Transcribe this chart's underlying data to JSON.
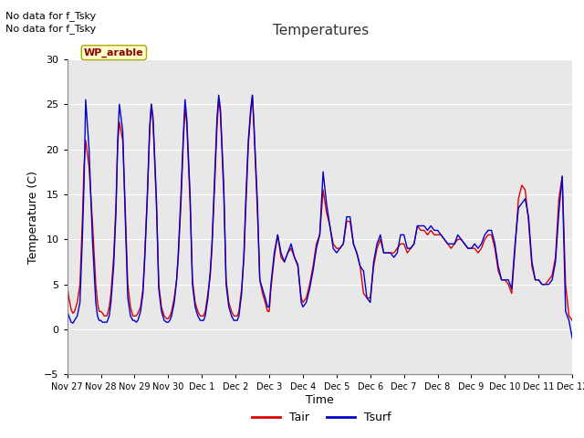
{
  "title": "Temperatures",
  "xlabel": "Time",
  "ylabel": "Temperature (C)",
  "ylim": [
    -5,
    30
  ],
  "xlim": [
    0,
    15
  ],
  "annotation_line1": "No data for f_Tsky",
  "annotation_line2": "No data for f_Tsky",
  "site_label": "WP_arable",
  "xtick_labels": [
    "Nov 27",
    "Nov 28",
    "Nov 29",
    "Nov 30",
    "Dec 1",
    "Dec 2",
    "Dec 3",
    "Dec 4",
    "Dec 5",
    "Dec 6",
    "Dec 7",
    "Dec 8",
    "Dec 9",
    "Dec 10",
    "Dec 11",
    "Dec 12"
  ],
  "yticks": [
    -5,
    0,
    5,
    10,
    15,
    20,
    25,
    30
  ],
  "tair_color": "#DD0000",
  "tsurf_color": "#0000CC",
  "bg_color": "#E8E8E8",
  "grid_color": "#FFFFFF",
  "fig_color": "#FFFFFF",
  "linewidth": 1.0,
  "legend_tair": "Tair",
  "legend_tsurf": "Tsurf",
  "tair_x": [
    0.0,
    0.05,
    0.12,
    0.17,
    0.22,
    0.3,
    0.38,
    0.45,
    0.5,
    0.55,
    0.65,
    0.75,
    0.85,
    0.9,
    0.95,
    1.0,
    1.05,
    1.1,
    1.18,
    1.25,
    1.3,
    1.38,
    1.45,
    1.5,
    1.55,
    1.65,
    1.72,
    1.8,
    1.88,
    1.95,
    2.0,
    2.05,
    2.1,
    2.18,
    2.25,
    2.3,
    2.38,
    2.45,
    2.5,
    2.55,
    2.65,
    2.72,
    2.8,
    2.88,
    2.95,
    3.0,
    3.05,
    3.1,
    3.18,
    3.25,
    3.3,
    3.38,
    3.45,
    3.5,
    3.55,
    3.65,
    3.72,
    3.8,
    3.88,
    3.95,
    4.0,
    4.05,
    4.1,
    4.18,
    4.25,
    4.3,
    4.38,
    4.45,
    4.5,
    4.55,
    4.65,
    4.72,
    4.8,
    4.88,
    4.95,
    5.0,
    5.05,
    5.1,
    5.18,
    5.25,
    5.3,
    5.38,
    5.45,
    5.5,
    5.55,
    5.65,
    5.72,
    5.8,
    5.88,
    5.95,
    6.0,
    6.05,
    6.15,
    6.25,
    6.35,
    6.45,
    6.55,
    6.65,
    6.75,
    6.85,
    6.95,
    7.0,
    7.1,
    7.2,
    7.3,
    7.4,
    7.5,
    7.6,
    7.7,
    7.8,
    7.9,
    8.0,
    8.1,
    8.2,
    8.3,
    8.4,
    8.5,
    8.6,
    8.7,
    8.8,
    8.9,
    9.0,
    9.1,
    9.2,
    9.3,
    9.4,
    9.5,
    9.6,
    9.7,
    9.8,
    9.9,
    10.0,
    10.1,
    10.2,
    10.3,
    10.4,
    10.5,
    10.6,
    10.7,
    10.8,
    10.9,
    11.0,
    11.1,
    11.2,
    11.3,
    11.4,
    11.5,
    11.6,
    11.7,
    11.8,
    11.9,
    12.0,
    12.1,
    12.2,
    12.3,
    12.4,
    12.5,
    12.6,
    12.7,
    12.8,
    12.9,
    13.0,
    13.1,
    13.2,
    13.3,
    13.4,
    13.5,
    13.6,
    13.7,
    13.8,
    13.9,
    14.0,
    14.1,
    14.2,
    14.3,
    14.4,
    14.5,
    14.6,
    14.7,
    14.8,
    14.9,
    15.0
  ],
  "tair_y": [
    5.0,
    3.5,
    2.2,
    1.8,
    2.0,
    3.0,
    5.0,
    12.0,
    18.0,
    21.0,
    18.0,
    12.0,
    5.0,
    3.0,
    2.0,
    2.0,
    1.8,
    1.5,
    1.5,
    2.5,
    4.0,
    8.0,
    14.0,
    20.5,
    23.0,
    21.0,
    14.0,
    5.0,
    2.5,
    1.5,
    1.5,
    1.5,
    1.8,
    2.5,
    4.5,
    8.0,
    15.0,
    22.0,
    25.0,
    23.0,
    14.0,
    5.0,
    2.5,
    1.5,
    1.2,
    1.2,
    1.5,
    2.0,
    3.5,
    5.5,
    8.0,
    14.0,
    21.0,
    24.5,
    23.0,
    14.0,
    5.5,
    3.0,
    2.0,
    1.5,
    1.5,
    1.5,
    2.0,
    4.0,
    6.0,
    9.0,
    16.0,
    22.5,
    25.5,
    24.0,
    15.0,
    5.5,
    3.0,
    2.0,
    1.5,
    1.5,
    1.5,
    2.0,
    4.5,
    8.0,
    13.0,
    20.5,
    24.0,
    26.0,
    22.0,
    13.0,
    5.5,
    4.0,
    3.0,
    2.0,
    2.0,
    4.5,
    8.0,
    10.5,
    8.0,
    7.5,
    8.5,
    9.0,
    8.0,
    7.0,
    3.5,
    3.0,
    3.5,
    5.0,
    7.0,
    9.5,
    10.5,
    15.5,
    13.0,
    11.5,
    9.5,
    9.0,
    9.0,
    9.5,
    12.0,
    12.0,
    9.5,
    8.5,
    7.0,
    4.0,
    3.5,
    3.5,
    7.0,
    9.0,
    10.0,
    8.5,
    8.5,
    8.5,
    8.5,
    9.0,
    9.5,
    9.5,
    8.5,
    9.0,
    9.5,
    11.5,
    11.0,
    11.0,
    10.5,
    11.0,
    10.5,
    10.5,
    10.5,
    10.0,
    9.5,
    9.0,
    9.5,
    10.0,
    10.0,
    9.5,
    9.0,
    9.0,
    9.0,
    8.5,
    9.0,
    10.0,
    10.5,
    10.5,
    9.0,
    6.5,
    5.5,
    5.5,
    5.0,
    4.0,
    9.0,
    14.5,
    16.0,
    15.5,
    12.0,
    7.0,
    5.5,
    5.5,
    5.0,
    5.0,
    5.5,
    6.0,
    8.0,
    14.5,
    17.0,
    5.0,
    1.5,
    1.0
  ],
  "tsurf_x": [
    0.0,
    0.05,
    0.12,
    0.17,
    0.22,
    0.3,
    0.38,
    0.45,
    0.5,
    0.55,
    0.65,
    0.75,
    0.85,
    0.9,
    0.95,
    1.0,
    1.05,
    1.1,
    1.18,
    1.25,
    1.3,
    1.38,
    1.45,
    1.5,
    1.55,
    1.65,
    1.72,
    1.8,
    1.88,
    1.95,
    2.0,
    2.05,
    2.1,
    2.18,
    2.25,
    2.3,
    2.38,
    2.45,
    2.5,
    2.55,
    2.65,
    2.72,
    2.8,
    2.88,
    2.95,
    3.0,
    3.05,
    3.1,
    3.18,
    3.25,
    3.3,
    3.38,
    3.45,
    3.5,
    3.55,
    3.65,
    3.72,
    3.8,
    3.88,
    3.95,
    4.0,
    4.05,
    4.1,
    4.18,
    4.25,
    4.3,
    4.38,
    4.45,
    4.5,
    4.55,
    4.65,
    4.72,
    4.8,
    4.88,
    4.95,
    5.0,
    5.05,
    5.1,
    5.18,
    5.25,
    5.3,
    5.38,
    5.45,
    5.5,
    5.55,
    5.65,
    5.72,
    5.8,
    5.88,
    5.95,
    6.0,
    6.05,
    6.15,
    6.25,
    6.35,
    6.45,
    6.55,
    6.65,
    6.75,
    6.85,
    6.95,
    7.0,
    7.1,
    7.2,
    7.3,
    7.4,
    7.5,
    7.6,
    7.7,
    7.8,
    7.9,
    8.0,
    8.1,
    8.2,
    8.3,
    8.4,
    8.5,
    8.6,
    8.7,
    8.8,
    8.9,
    9.0,
    9.1,
    9.2,
    9.3,
    9.4,
    9.5,
    9.6,
    9.7,
    9.8,
    9.9,
    10.0,
    10.1,
    10.2,
    10.3,
    10.4,
    10.5,
    10.6,
    10.7,
    10.8,
    10.9,
    11.0,
    11.1,
    11.2,
    11.3,
    11.4,
    11.5,
    11.6,
    11.7,
    11.8,
    11.9,
    12.0,
    12.1,
    12.2,
    12.3,
    12.4,
    12.5,
    12.6,
    12.7,
    12.8,
    12.9,
    13.0,
    13.1,
    13.2,
    13.3,
    13.4,
    13.5,
    13.6,
    13.7,
    13.8,
    13.9,
    14.0,
    14.1,
    14.2,
    14.3,
    14.4,
    14.5,
    14.6,
    14.7,
    14.8,
    14.9,
    15.0
  ],
  "tsurf_y": [
    2.0,
    1.5,
    0.8,
    0.7,
    1.0,
    1.5,
    3.0,
    10.0,
    16.0,
    25.5,
    20.0,
    10.0,
    3.0,
    1.5,
    1.0,
    1.0,
    0.8,
    0.8,
    0.8,
    1.5,
    3.0,
    7.0,
    13.0,
    21.0,
    25.0,
    22.0,
    13.0,
    3.5,
    1.5,
    1.0,
    1.0,
    0.8,
    1.0,
    2.0,
    4.0,
    7.5,
    14.5,
    22.5,
    25.0,
    23.5,
    14.5,
    4.5,
    2.0,
    1.0,
    0.8,
    0.8,
    1.0,
    1.5,
    3.0,
    5.5,
    8.5,
    15.0,
    21.5,
    25.5,
    23.5,
    15.0,
    5.0,
    2.5,
    1.5,
    1.0,
    1.0,
    1.0,
    1.5,
    3.5,
    6.5,
    9.5,
    17.0,
    23.5,
    26.0,
    24.5,
    16.0,
    5.0,
    2.5,
    1.5,
    1.0,
    1.0,
    1.0,
    1.5,
    4.0,
    8.5,
    14.0,
    21.0,
    24.5,
    26.0,
    22.5,
    14.0,
    5.5,
    4.5,
    3.5,
    2.5,
    2.5,
    5.0,
    8.5,
    10.5,
    8.5,
    7.5,
    8.5,
    9.5,
    8.0,
    7.2,
    3.0,
    2.5,
    3.0,
    4.5,
    6.5,
    9.0,
    10.5,
    17.5,
    14.0,
    11.5,
    9.0,
    8.5,
    9.0,
    9.5,
    12.5,
    12.5,
    9.5,
    8.5,
    7.0,
    6.5,
    3.5,
    3.0,
    7.5,
    9.5,
    10.5,
    8.5,
    8.5,
    8.5,
    8.0,
    8.5,
    10.5,
    10.5,
    9.0,
    9.0,
    9.5,
    11.5,
    11.5,
    11.5,
    11.0,
    11.5,
    11.0,
    11.0,
    10.5,
    10.0,
    9.5,
    9.5,
    9.5,
    10.5,
    10.0,
    9.5,
    9.0,
    9.0,
    9.5,
    9.0,
    9.5,
    10.5,
    11.0,
    11.0,
    9.5,
    7.0,
    5.5,
    5.5,
    5.5,
    4.5,
    9.5,
    13.5,
    14.0,
    14.5,
    12.5,
    7.5,
    5.5,
    5.5,
    5.0,
    5.0,
    5.0,
    5.5,
    7.5,
    13.0,
    17.0,
    2.0,
    1.0,
    -1.0
  ]
}
